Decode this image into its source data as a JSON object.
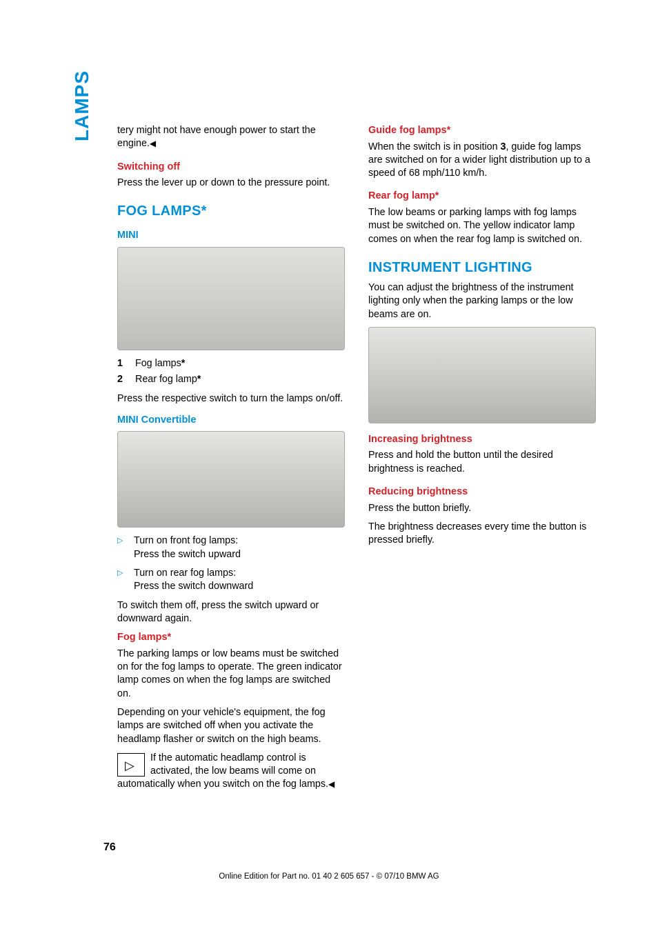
{
  "side_tab": "LAMPS",
  "page_number": "76",
  "footer": "Online Edition for Part no. 01 40 2 605 657 - © 07/10  BMW AG",
  "colors": {
    "accent_blue": "#008fd5",
    "accent_red": "#d2232a",
    "body_text": "#000000",
    "figure_bg_top": "#e0e0de",
    "figure_bg_bottom": "#bcbcb8",
    "page_bg": "#ffffff"
  },
  "col1": {
    "intro_tail": "tery might not have enough power to start the engine.",
    "switching_off": {
      "title": "Switching off",
      "body": "Press the lever up or down to the pressure point."
    },
    "fog_lamps": {
      "title": "FOG LAMPS*",
      "mini_title": "MINI",
      "legend": [
        {
          "n": "1",
          "label": "Fog lamps",
          "star": true
        },
        {
          "n": "2",
          "label": "Rear fog lamp",
          "star": true
        }
      ],
      "press_text": "Press the respective switch to turn the lamps on/off.",
      "mini_conv_title": "MINI Convertible",
      "tri_items": [
        {
          "line1": "Turn on front fog lamps:",
          "line2": "Press the switch upward"
        },
        {
          "line1": "Turn on rear fog lamps:",
          "line2": "Press the switch downward"
        }
      ],
      "switch_off_text": "To switch them off, press the switch upward or downward again."
    }
  },
  "col2": {
    "fog_lamps_detail": {
      "title": "Fog lamps*",
      "p1": "The parking lamps or low beams must be switched on for the fog lamps to operate. The green indicator lamp comes on when the fog lamps are switched on.",
      "p2": "Depending on your vehicle's equipment, the fog lamps are switched off when you activate the headlamp flasher or switch on the high beams.",
      "tip": "If the automatic headlamp control is activated, the low beams will come on automatically when you switch on the fog lamps."
    },
    "guide_fog": {
      "title": "Guide fog lamps*",
      "body_pre": "When the switch is in position ",
      "bold": "3",
      "body_post": ", guide fog lamps are switched on for a wider light distribution up to a speed of 68 mph/110 km/h."
    },
    "rear_fog": {
      "title": "Rear fog lamp*",
      "body": "The low beams or parking lamps with fog lamps must be switched on. The yellow indicator lamp comes on when the rear fog lamp is switched on."
    },
    "instrument": {
      "title": "INSTRUMENT LIGHTING",
      "intro": "You can adjust the brightness of the instrument lighting only when the parking lamps or the low beams are on.",
      "increase": {
        "title": "Increasing brightness",
        "body": "Press and hold the button until the desired brightness is reached."
      },
      "reduce": {
        "title": "Reducing brightness",
        "p1": "Press the button briefly.",
        "p2": "The brightness decreases every time the button is pressed briefly."
      }
    }
  }
}
